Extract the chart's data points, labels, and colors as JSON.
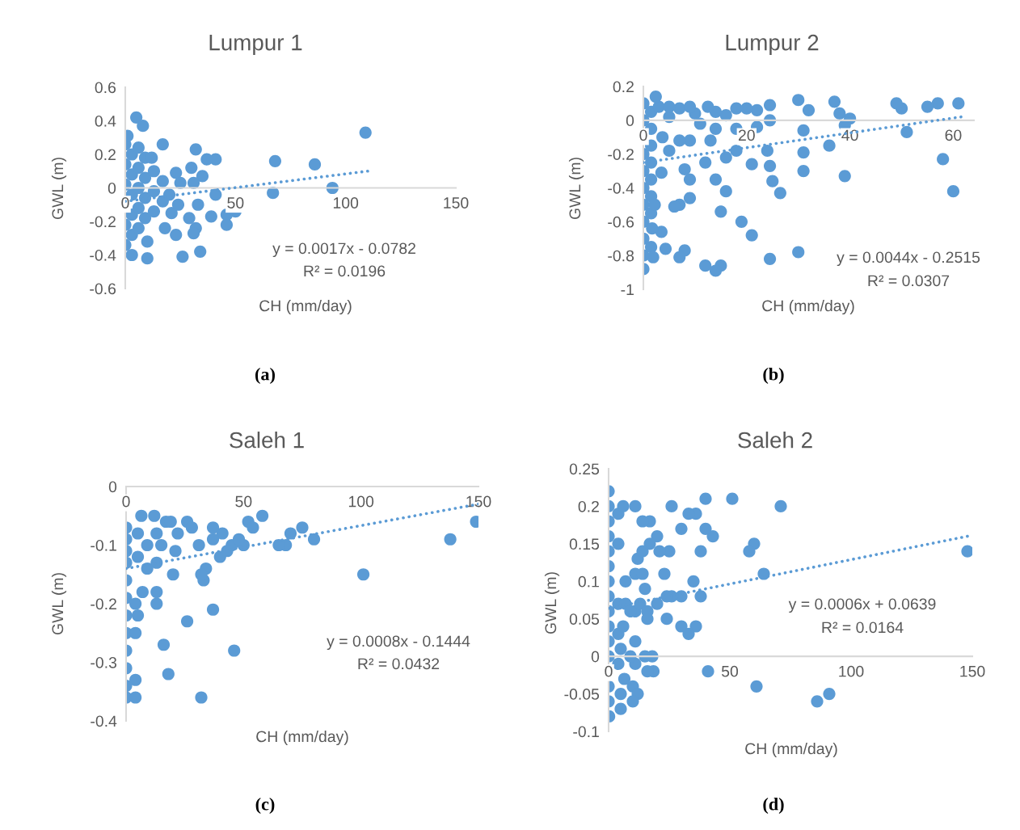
{
  "chart_data": [
    {
      "type": "scatter",
      "title": "Lumpur 1",
      "xlabel": "CH (mm/day)",
      "ylabel": "GWL (m)",
      "xlim": [
        0,
        150
      ],
      "ylim": [
        -0.6,
        0.6
      ],
      "xticks": [
        0,
        50,
        100,
        150
      ],
      "yticks": [
        -0.6,
        -0.4,
        -0.2,
        0,
        0.2,
        0.4,
        0.6
      ],
      "annotations": [
        "y = 0.0017x - 0.0782",
        "R² = 0.0196",
        "(a)"
      ],
      "series": [
        {
          "marker": "circle",
          "color": "#5b9bd5",
          "x": [
            0,
            0,
            0,
            0,
            0,
            3,
            3,
            3,
            3,
            3,
            3,
            6,
            6,
            6,
            6,
            6,
            9,
            9,
            9,
            9,
            13,
            13,
            13,
            17,
            17,
            21,
            5,
            8,
            1,
            109,
            68,
            86,
            94,
            67,
            32,
            41,
            37,
            17,
            12,
            30,
            35,
            31,
            23,
            41,
            39,
            46,
            46,
            50,
            32,
            31,
            34,
            26,
            23,
            10,
            10,
            33,
            24,
            29,
            20,
            18,
            25
          ],
          "values": [
            0.26,
            0.14,
            0.02,
            -0.22,
            -0.34,
            0.2,
            0.08,
            -0.04,
            -0.16,
            -0.28,
            -0.4,
            0.24,
            0.12,
            0,
            -0.12,
            -0.24,
            0.18,
            0.06,
            -0.06,
            -0.18,
            0.1,
            -0.02,
            -0.14,
            0.04,
            -0.08,
            -0.15,
            0.42,
            0.37,
            0.31,
            0.33,
            0.16,
            0.14,
            0,
            -0.03,
            0.23,
            0.17,
            0.17,
            0.26,
            0.18,
            0.12,
            0.07,
            0.03,
            0.09,
            -0.04,
            -0.17,
            -0.22,
            -0.16,
            -0.14,
            -0.24,
            -0.27,
            -0.38,
            -0.41,
            -0.28,
            -0.42,
            -0.32,
            -0.1,
            -0.1,
            -0.18,
            -0.04,
            -0.24,
            0.03
          ]
        },
        {
          "type": "line",
          "line_style": "dotted",
          "color": "#5b9bd5",
          "x": [
            0,
            110
          ],
          "values": [
            -0.08,
            0.1
          ]
        }
      ]
    },
    {
      "type": "scatter",
      "title": "Lumpur 2",
      "xlabel": "CH (mm/day)",
      "ylabel": "GWL (m)",
      "xlim": [
        0,
        64
      ],
      "ylim": [
        -1,
        0.2
      ],
      "xticks": [
        0,
        20,
        40,
        60
      ],
      "yticks": [
        -1,
        -0.8,
        -0.6,
        -0.4,
        -0.2,
        0,
        0.2
      ],
      "annotations": [
        "y = 0.0044x - 0.2515",
        "R² = 0.0307",
        "(b)"
      ],
      "series": [
        {
          "marker": "circle",
          "color": "#5b9bd5",
          "x": [
            0,
            0,
            0,
            0,
            0,
            0,
            0,
            0,
            0,
            0,
            1.5,
            1.5,
            1.5,
            1.5,
            1.5,
            1.5,
            1.5,
            1.5,
            3,
            5,
            7,
            10,
            14,
            61,
            57,
            55,
            50,
            49,
            51,
            58,
            60,
            39,
            37,
            38,
            40,
            39,
            36,
            30,
            32,
            31,
            31,
            31,
            30,
            24.5,
            24.5,
            24.5,
            24,
            24.5,
            25,
            26.5,
            22,
            22,
            21,
            21,
            19,
            18,
            18,
            18,
            16,
            15,
            16,
            14,
            12,
            13,
            14,
            12.5,
            15,
            14,
            12,
            9,
            7,
            6,
            9,
            8,
            8,
            7,
            9,
            7,
            9,
            5,
            2.4,
            3.7,
            5,
            3.5,
            4.3,
            1.7,
            1.9,
            3.5,
            2.2,
            11,
            16,
            20
          ],
          "values": [
            0.1,
            0,
            -0.2,
            -0.3,
            -0.4,
            -0.5,
            -0.6,
            -0.7,
            -0.8,
            -0.88,
            0.05,
            -0.05,
            -0.15,
            -0.25,
            -0.35,
            -0.45,
            -0.55,
            -0.75,
            0.08,
            0.02,
            0.07,
            0.04,
            0.05,
            0.1,
            0.1,
            0.08,
            0.07,
            0.1,
            -0.07,
            -0.23,
            -0.42,
            -0.33,
            0.11,
            0.04,
            0.01,
            -0.03,
            -0.15,
            0.12,
            0.06,
            -0.06,
            -0.19,
            -0.3,
            -0.78,
            -0.82,
            0.09,
            0,
            -0.18,
            -0.27,
            -0.36,
            -0.43,
            0.06,
            -0.04,
            -0.26,
            -0.68,
            -0.6,
            -0.18,
            -0.05,
            0.07,
            -0.42,
            -0.54,
            -0.22,
            -0.35,
            -0.25,
            -0.12,
            -0.05,
            0.08,
            -0.86,
            -0.89,
            -0.86,
            -0.46,
            -0.5,
            -0.51,
            -0.35,
            -0.29,
            -0.77,
            -0.81,
            -0.12,
            -0.12,
            0.08,
            0.08,
            0.14,
            -0.1,
            -0.18,
            -0.66,
            -0.76,
            -0.64,
            -0.81,
            -0.31,
            -0.5,
            -0.02,
            0.03,
            0.07
          ]
        },
        {
          "type": "line",
          "line_style": "dotted",
          "color": "#5b9bd5",
          "x": [
            0,
            61.5
          ],
          "values": [
            -0.25,
            0.02
          ]
        }
      ]
    },
    {
      "type": "scatter",
      "title": "Saleh 1",
      "xlabel": "CH (mm/day)",
      "ylabel": "GWL (m)",
      "xlim": [
        0,
        150
      ],
      "ylim": [
        -0.4,
        0
      ],
      "xticks": [
        0,
        50,
        100,
        150
      ],
      "yticks": [
        -0.4,
        -0.3,
        -0.2,
        -0.1,
        0
      ],
      "annotations": [
        "y = 0.0008x - 0.1444",
        "R² = 0.0432",
        "(c)"
      ],
      "series": [
        {
          "marker": "circle",
          "color": "#5b9bd5",
          "x": [
            0,
            0,
            0,
            0,
            0,
            0,
            0,
            0,
            0,
            0,
            0,
            0,
            5,
            5,
            9,
            13,
            17,
            22,
            45,
            149,
            138,
            101,
            80,
            75,
            70,
            68,
            65,
            58,
            52,
            54,
            50,
            48,
            43,
            40,
            41,
            37,
            37,
            31,
            34,
            33,
            32,
            37,
            26,
            46,
            32,
            16,
            18,
            20,
            13,
            13,
            7,
            5,
            4,
            4,
            4,
            4,
            6.5,
            12,
            19,
            26,
            28,
            21,
            13,
            9,
            15
          ],
          "values": [
            -0.07,
            -0.09,
            -0.11,
            -0.13,
            -0.16,
            -0.19,
            -0.22,
            -0.25,
            -0.28,
            -0.31,
            -0.34,
            -0.36,
            -0.08,
            -0.12,
            -0.1,
            -0.08,
            -0.06,
            -0.08,
            -0.1,
            -0.06,
            -0.09,
            -0.15,
            -0.09,
            -0.07,
            -0.08,
            -0.1,
            -0.1,
            -0.05,
            -0.06,
            -0.07,
            -0.1,
            -0.09,
            -0.11,
            -0.12,
            -0.08,
            -0.07,
            -0.09,
            -0.1,
            -0.14,
            -0.16,
            -0.15,
            -0.21,
            -0.23,
            -0.28,
            -0.36,
            -0.27,
            -0.32,
            -0.15,
            -0.2,
            -0.18,
            -0.18,
            -0.22,
            -0.2,
            -0.25,
            -0.33,
            -0.36,
            -0.05,
            -0.05,
            -0.06,
            -0.06,
            -0.07,
            -0.11,
            -0.13,
            -0.14,
            -0.1
          ]
        },
        {
          "type": "line",
          "line_style": "dotted",
          "color": "#5b9bd5",
          "x": [
            0,
            150
          ],
          "values": [
            -0.14,
            -0.03
          ]
        }
      ]
    },
    {
      "type": "scatter",
      "title": "Saleh 2",
      "xlabel": "CH (mm/day)",
      "ylabel": "GWL (m)",
      "xlim": [
        0,
        150
      ],
      "ylim": [
        -0.1,
        0.25
      ],
      "xticks": [
        0,
        50,
        100,
        150
      ],
      "yticks": [
        -0.1,
        -0.05,
        0,
        0.05,
        0.1,
        0.15,
        0.2,
        0.25
      ],
      "annotations": [
        "y = 0.0006x + 0.0639",
        "R² = 0.0164",
        "(d)"
      ],
      "series": [
        {
          "marker": "circle",
          "color": "#5b9bd5",
          "x": [
            0,
            0,
            0,
            0,
            0,
            0,
            0,
            0,
            0,
            0,
            0,
            0,
            0,
            4,
            4,
            4,
            4,
            4,
            7,
            7,
            11,
            11,
            13,
            16,
            148,
            71,
            51,
            40,
            64,
            60,
            58,
            43,
            40,
            36,
            33,
            38,
            35,
            38,
            30,
            26,
            24,
            23,
            24,
            30,
            36,
            33,
            30,
            26,
            25,
            20,
            21,
            17,
            17,
            14,
            11,
            6,
            12,
            14,
            14,
            15,
            20,
            16,
            11,
            41,
            61,
            86,
            91,
            18,
            15,
            18.5,
            16,
            11,
            10,
            12,
            10,
            5,
            0.2,
            5,
            6.5,
            5,
            6,
            9,
            0,
            9
          ],
          "values": [
            0.2,
            0.18,
            0.16,
            0.14,
            0.12,
            0.1,
            0.08,
            0.06,
            0.04,
            0.02,
            0,
            -0.04,
            -0.06,
            0.19,
            0.15,
            0.07,
            0.03,
            -0.01,
            0.1,
            0.07,
            0.11,
            0.06,
            0.07,
            0.06,
            0.14,
            0.2,
            0.21,
            0.21,
            0.11,
            0.15,
            0.14,
            0.16,
            0.17,
            0.19,
            0.19,
            0.14,
            0.1,
            0.08,
            0.08,
            0.08,
            0.08,
            0.11,
            0.05,
            0.04,
            0.04,
            0.03,
            0.17,
            0.2,
            0.14,
            0.16,
            0.14,
            0.15,
            0.18,
            0.18,
            0.2,
            0.2,
            0.13,
            0.14,
            0.11,
            0.09,
            0.07,
            0.05,
            0.02,
            -0.02,
            -0.04,
            -0.06,
            -0.05,
            0,
            0,
            -0.02,
            -0.02,
            -0.01,
            -0.04,
            -0.05,
            -0.06,
            -0.07,
            -0.08,
            -0.05,
            -0.03,
            0.01,
            0.04,
            0,
            0.22,
            0.06
          ]
        },
        {
          "type": "line",
          "line_style": "dotted",
          "color": "#5b9bd5",
          "x": [
            0,
            148
          ],
          "values": [
            0.064,
            0.16
          ]
        }
      ]
    }
  ]
}
